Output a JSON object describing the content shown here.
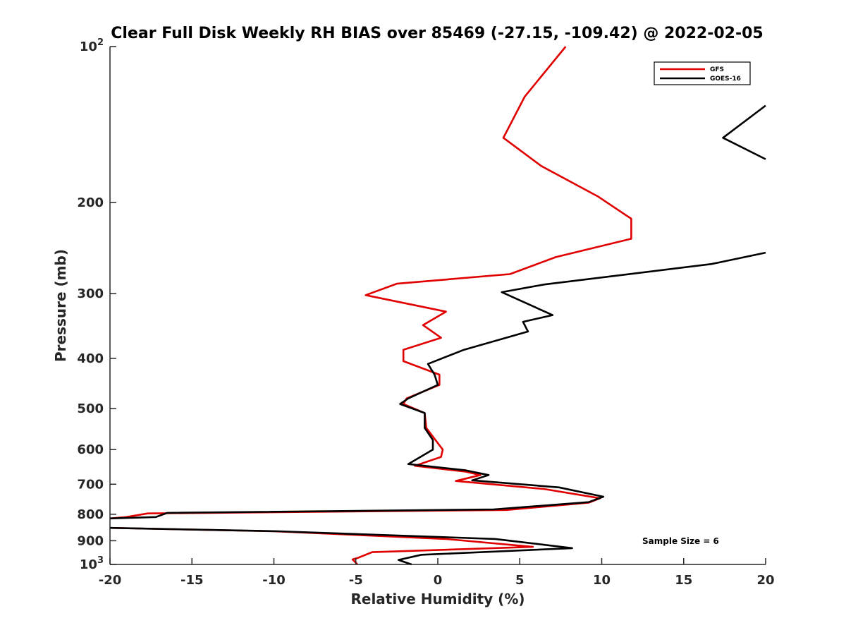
{
  "chart_data": {
    "type": "line",
    "title": "Clear Full Disk Weekly RH BIAS over 85469 (-27.15, -109.42) @ 2022-02-05",
    "xlabel": "Relative Humidity (%)",
    "ylabel": "Pressure (mb)",
    "xlim": [
      -20,
      20
    ],
    "ylim": [
      100,
      1000
    ],
    "yscale": "log",
    "y_reversed": true,
    "grid": false,
    "legend_position": "top-right",
    "annotation": "Sample Size = 6",
    "x_ticks": [
      -20,
      -15,
      -10,
      -5,
      0,
      5,
      10,
      15,
      20
    ],
    "x_tick_labels": [
      "-20",
      "-15",
      "-10",
      "-5",
      "0",
      "5",
      "10",
      "15",
      "20"
    ],
    "y_ticks": [
      {
        "value": 100,
        "base": "10",
        "exp": "2"
      },
      {
        "value": 200,
        "label": "200"
      },
      {
        "value": 300,
        "label": "300"
      },
      {
        "value": 400,
        "label": "400"
      },
      {
        "value": 500,
        "label": "500"
      },
      {
        "value": 600,
        "label": "600"
      },
      {
        "value": 700,
        "label": "700"
      },
      {
        "value": 800,
        "label": "800"
      },
      {
        "value": 900,
        "label": "900"
      },
      {
        "value": 1000,
        "base": "10",
        "exp": "3"
      }
    ],
    "series": [
      {
        "name": "GFS",
        "color": "#e00000",
        "points": [
          [
            7.8,
            100
          ],
          [
            5.3,
            125
          ],
          [
            4.0,
            150
          ],
          [
            6.3,
            170
          ],
          [
            9.8,
            195
          ],
          [
            11.8,
            215
          ],
          [
            11.8,
            235
          ],
          [
            7.2,
            255
          ],
          [
            4.4,
            275
          ],
          [
            -2.5,
            287
          ],
          [
            -4.4,
            302
          ],
          [
            0.5,
            325
          ],
          [
            -0.9,
            345
          ],
          [
            0.2,
            365
          ],
          [
            -2.1,
            385
          ],
          [
            -2.1,
            405
          ],
          [
            0.1,
            430
          ],
          [
            0.1,
            450
          ],
          [
            -1.9,
            478
          ],
          [
            -2.1,
            490
          ],
          [
            -0.8,
            510
          ],
          [
            -0.7,
            545
          ],
          [
            0.3,
            600
          ],
          [
            0.2,
            620
          ],
          [
            -1.4,
            645
          ],
          [
            1.7,
            662
          ],
          [
            2.6,
            672
          ],
          [
            1.1,
            690
          ],
          [
            6.5,
            715
          ],
          [
            9.9,
            745
          ],
          [
            9.2,
            760
          ],
          [
            4.2,
            785
          ],
          [
            -17.7,
            797
          ],
          [
            -19.0,
            810
          ],
          [
            -20.0,
            815
          ],
          [
            -20.0,
            850
          ],
          [
            -10.0,
            863
          ],
          [
            0.5,
            893
          ],
          [
            5.8,
            925
          ],
          [
            -4.0,
            947
          ],
          [
            -4.9,
            972
          ],
          [
            -5.2,
            978
          ],
          [
            -4.9,
            1000
          ]
        ]
      },
      {
        "name": "GOES-16",
        "color": "#000000",
        "points": [
          [
            20.0,
            130
          ],
          [
            17.4,
            150
          ],
          [
            20.0,
            165
          ],
          [
            20.0,
            250
          ],
          [
            16.7,
            263
          ],
          [
            6.5,
            288
          ],
          [
            3.9,
            298
          ],
          [
            7.0,
            330
          ],
          [
            5.2,
            340
          ],
          [
            5.5,
            355
          ],
          [
            1.6,
            385
          ],
          [
            -0.6,
            410
          ],
          [
            -0.2,
            430
          ],
          [
            0.0,
            450
          ],
          [
            -1.8,
            478
          ],
          [
            -2.3,
            490
          ],
          [
            -0.8,
            510
          ],
          [
            -0.8,
            545
          ],
          [
            -0.3,
            575
          ],
          [
            -0.3,
            600
          ],
          [
            -1.8,
            640
          ],
          [
            1.7,
            658
          ],
          [
            3.1,
            672
          ],
          [
            2.1,
            688
          ],
          [
            7.4,
            710
          ],
          [
            10.1,
            740
          ],
          [
            9.2,
            758
          ],
          [
            3.4,
            783
          ],
          [
            -16.5,
            795
          ],
          [
            -17.2,
            810
          ],
          [
            -20.0,
            815
          ],
          [
            -20.0,
            850
          ],
          [
            -9.7,
            863
          ],
          [
            3.5,
            893
          ],
          [
            8.2,
            930
          ],
          [
            -1.0,
            958
          ],
          [
            -2.4,
            980
          ],
          [
            -1.6,
            1000
          ]
        ]
      }
    ]
  }
}
